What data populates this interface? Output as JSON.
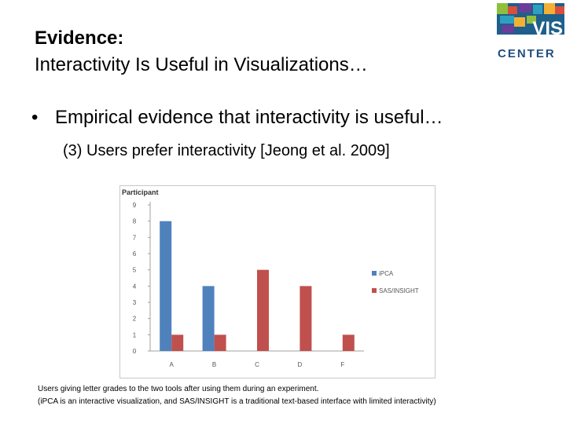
{
  "slide": {
    "title_line1": "Evidence:",
    "title_line2": "Interactivity Is Useful in Visualizations…",
    "bullet_text": "Empirical evidence that interactivity is useful…",
    "sub_text": "(3) Users prefer interactivity [Jeong et al. 2009]",
    "caption_line1": "Users giving letter grades to the two tools after using them during an experiment.",
    "caption_line2": "(iPCA is an interactive visualization, and SAS/INSIGHT is a traditional text-based interface with limited interactivity)"
  },
  "logo": {
    "text_top": "VIS",
    "text_bottom": "CENTER",
    "colors": [
      "#1f5f8b",
      "#8fbf3f",
      "#d94f3d",
      "#6a3d9a",
      "#2f9fbf",
      "#f2b134"
    ]
  },
  "chart_data": {
    "type": "bar",
    "title": "",
    "ylabel": "Participant",
    "xlabel": "",
    "categories": [
      "A",
      "B",
      "C",
      "D",
      "F"
    ],
    "series": [
      {
        "name": "iPCA",
        "values": [
          8,
          4,
          0,
          0,
          0
        ],
        "color": "#4f81bd"
      },
      {
        "name": "SAS/INSIGHT",
        "values": [
          1,
          1,
          5,
          4,
          1
        ],
        "color": "#c0504d"
      }
    ],
    "ylim": [
      0,
      9
    ],
    "yticks": [
      0,
      1,
      2,
      3,
      4,
      5,
      6,
      7,
      8,
      9
    ],
    "grid": false,
    "legend": "right"
  }
}
